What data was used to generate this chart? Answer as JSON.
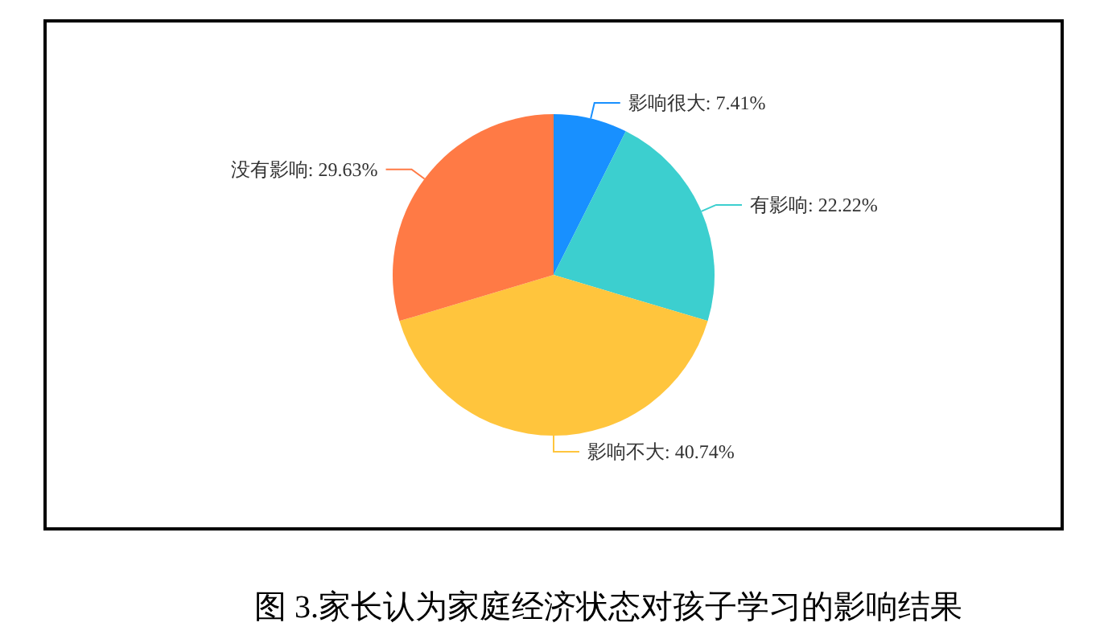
{
  "chart_data": {
    "type": "pie",
    "title": "图 3.家长认为家庭经济状态对孩子学习的影响结果",
    "categories": [
      "影响很大",
      "有影响",
      "影响不大",
      "没有影响"
    ],
    "values": [
      7.41,
      22.22,
      40.74,
      29.63
    ],
    "value_labels": [
      "7.41%",
      "22.22%",
      "40.74%",
      "29.63%"
    ],
    "colors": [
      "#1890ff",
      "#3ccfcf",
      "#ffc53d",
      "#ff7a45"
    ],
    "legend": false
  }
}
